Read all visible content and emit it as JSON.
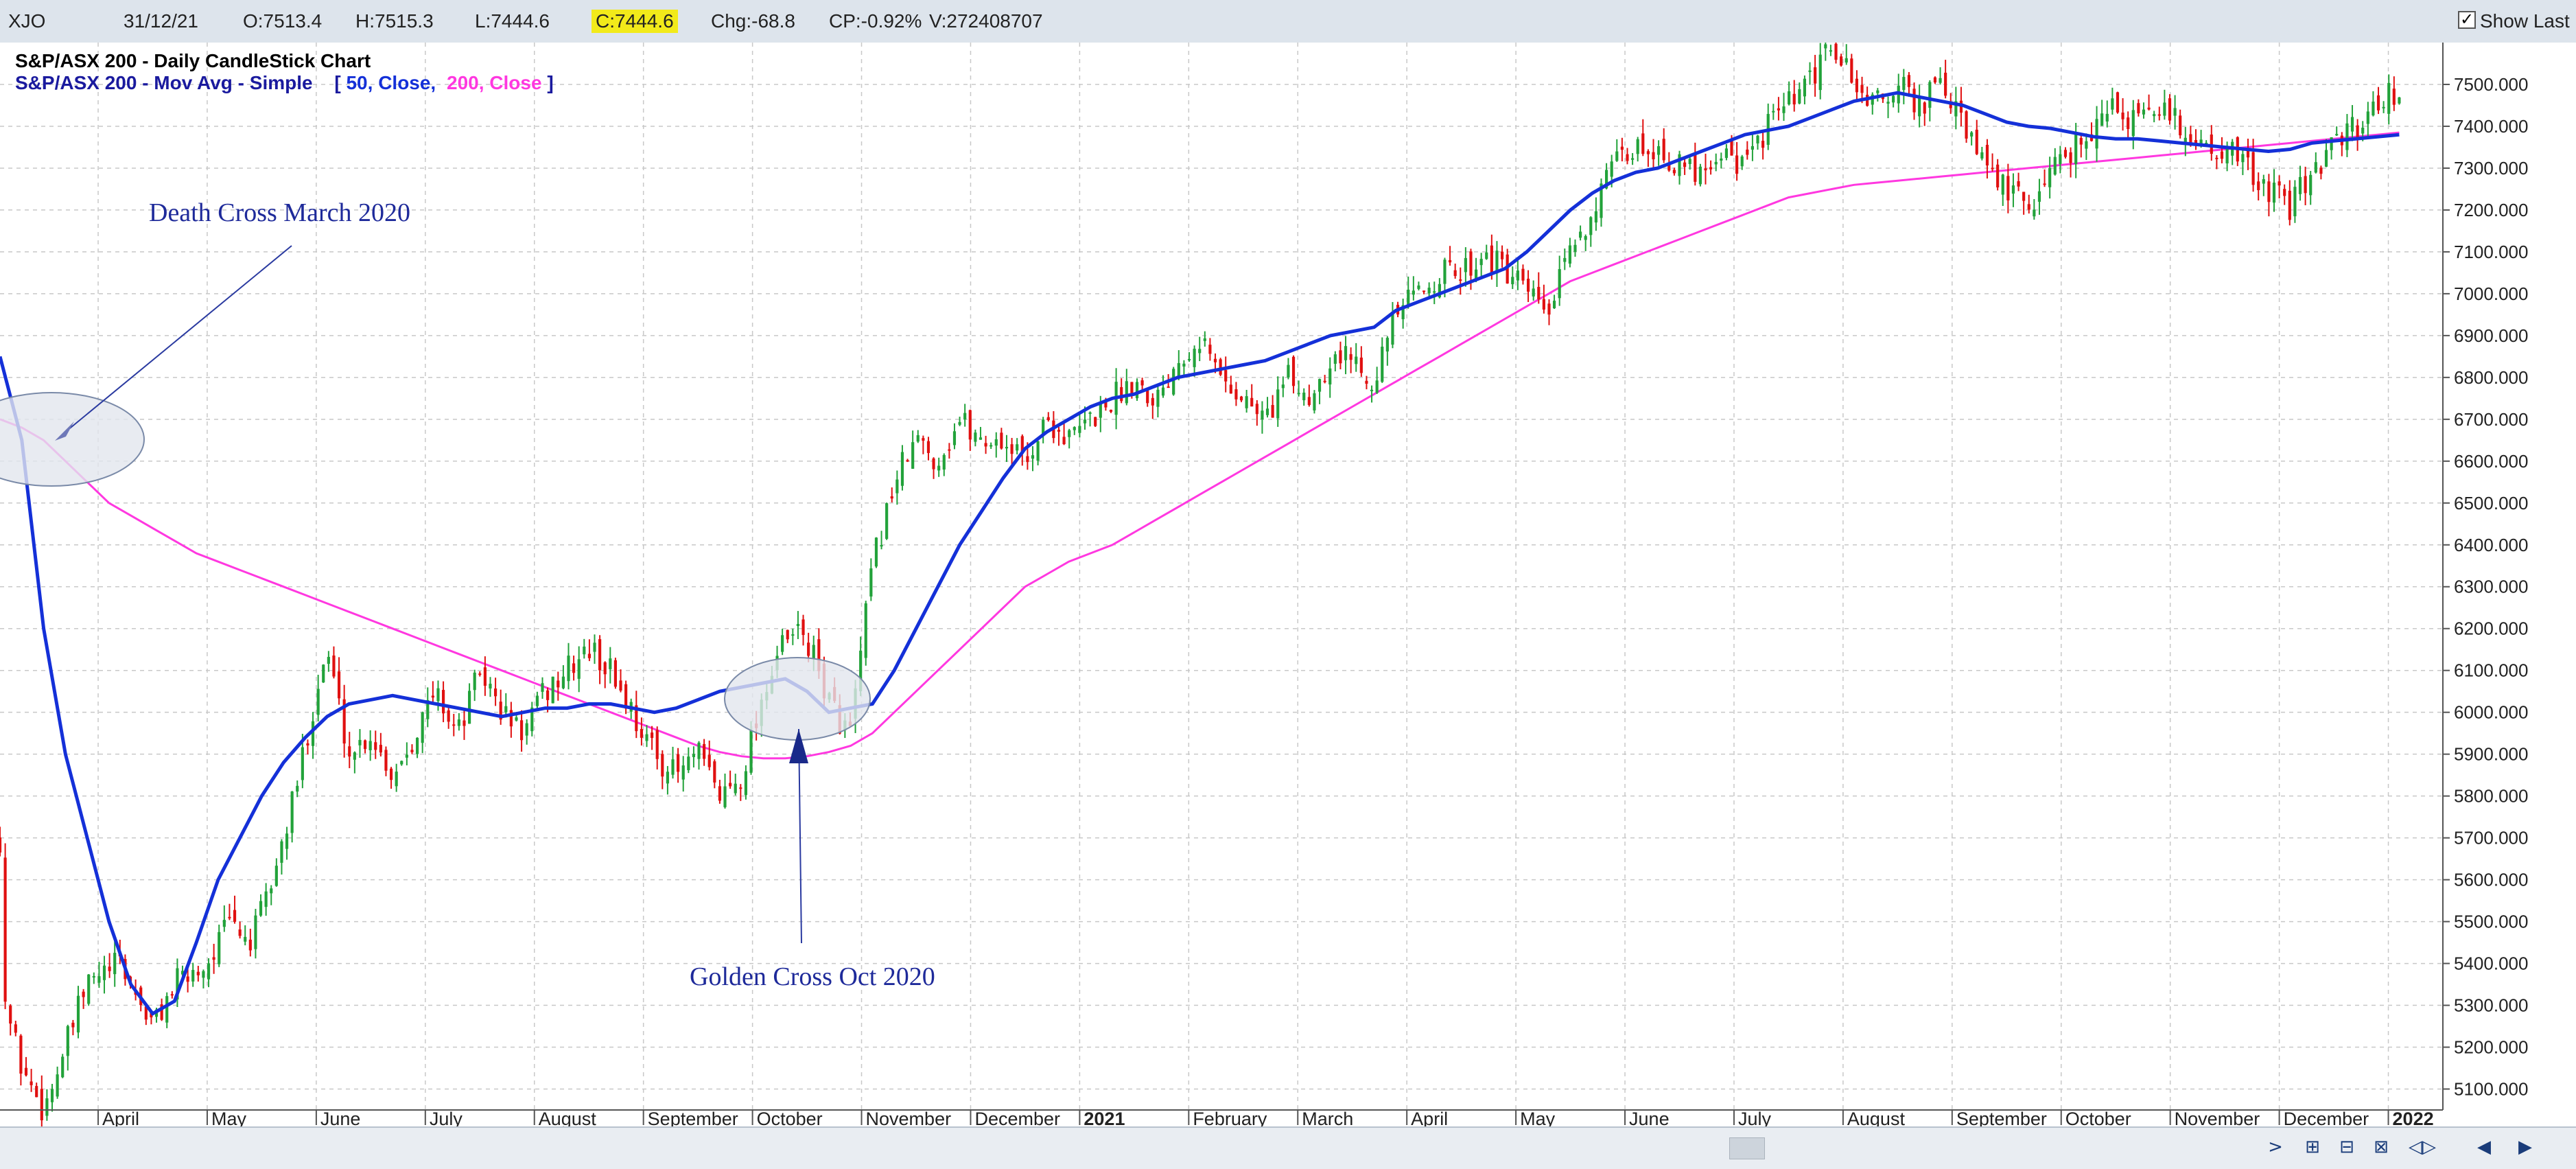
{
  "header": {
    "symbol": "XJO",
    "date": "31/12/21",
    "open": "O:7513.4",
    "high": "H:7515.3",
    "low": "L:7444.6",
    "close": "C:7444.6",
    "change": "Chg:-68.8",
    "change_pct": "CP:-0.92%",
    "volume": "V:272408707",
    "show_last_label": "Show Last",
    "show_last_checked": "✓"
  },
  "chart_data": {
    "type": "candlestick",
    "title": "S&P/ASX 200 - Daily CandleStick Chart",
    "subtitle_prefix": "S&P/ASX 200 - Mov Avg - Simple",
    "ma_params": {
      "open": "[",
      "p1": "50, Close,",
      "p2": "200, Close",
      "close": "]"
    },
    "ylim": [
      5050,
      7600
    ],
    "y_ticks": [
      "5100.000",
      "5200.000",
      "5300.000",
      "5400.000",
      "5500.000",
      "5600.000",
      "5700.000",
      "5800.000",
      "5900.000",
      "6000.000",
      "6100.000",
      "6200.000",
      "6300.000",
      "6400.000",
      "6500.000",
      "6600.000",
      "6700.000",
      "6800.000",
      "6900.000",
      "7000.000",
      "7100.000",
      "7200.000",
      "7300.000",
      "7400.000",
      "7500.000"
    ],
    "x_ticks": [
      {
        "label": "April",
        "x": 3.0
      },
      {
        "label": "May",
        "x": 4.0
      },
      {
        "label": "June",
        "x": 5.0
      },
      {
        "label": "July",
        "x": 6.0
      },
      {
        "label": "August",
        "x": 7.0
      },
      {
        "label": "September",
        "x": 8.0
      },
      {
        "label": "October",
        "x": 9.0
      },
      {
        "label": "November",
        "x": 10.0
      },
      {
        "label": "December",
        "x": 11.0
      },
      {
        "label": "2021",
        "x": 12.0,
        "bold": true
      },
      {
        "label": "February",
        "x": 13.0
      },
      {
        "label": "March",
        "x": 14.0
      },
      {
        "label": "April",
        "x": 15.0
      },
      {
        "label": "May",
        "x": 16.0
      },
      {
        "label": "June",
        "x": 17.0
      },
      {
        "label": "July",
        "x": 18.0
      },
      {
        "label": "August",
        "x": 19.0
      },
      {
        "label": "September",
        "x": 20.0
      },
      {
        "label": "October",
        "x": 21.0
      },
      {
        "label": "November",
        "x": 22.0
      },
      {
        "label": "December",
        "x": 23.0
      },
      {
        "label": "2022",
        "x": 24.0,
        "bold": true
      }
    ],
    "x_range": [
      2.1,
      24.5
    ],
    "close_path": [
      [
        2.1,
        5700
      ],
      [
        2.15,
        5300
      ],
      [
        2.3,
        5150
      ],
      [
        2.5,
        5050
      ],
      [
        2.7,
        5200
      ],
      [
        2.9,
        5350
      ],
      [
        3.2,
        5400
      ],
      [
        3.5,
        5250
      ],
      [
        3.7,
        5350
      ],
      [
        4.0,
        5400
      ],
      [
        4.2,
        5500
      ],
      [
        4.4,
        5450
      ],
      [
        4.6,
        5600
      ],
      [
        4.8,
        5800
      ],
      [
        5.0,
        6050
      ],
      [
        5.1,
        6150
      ],
      [
        5.3,
        5900
      ],
      [
        5.5,
        5950
      ],
      [
        5.7,
        5850
      ],
      [
        5.9,
        5950
      ],
      [
        6.1,
        6050
      ],
      [
        6.3,
        5950
      ],
      [
        6.5,
        6100
      ],
      [
        6.7,
        6000
      ],
      [
        6.9,
        5950
      ],
      [
        7.1,
        6050
      ],
      [
        7.3,
        6100
      ],
      [
        7.5,
        6150
      ],
      [
        7.7,
        6100
      ],
      [
        7.9,
        6000
      ],
      [
        8.1,
        5900
      ],
      [
        8.3,
        5850
      ],
      [
        8.5,
        5900
      ],
      [
        8.7,
        5800
      ],
      [
        8.9,
        5850
      ],
      [
        9.1,
        6050
      ],
      [
        9.25,
        6150
      ],
      [
        9.45,
        6200
      ],
      [
        9.6,
        6100
      ],
      [
        9.75,
        6000
      ],
      [
        9.9,
        5950
      ],
      [
        10.1,
        6350
      ],
      [
        10.3,
        6550
      ],
      [
        10.5,
        6650
      ],
      [
        10.7,
        6600
      ],
      [
        10.9,
        6700
      ],
      [
        11.1,
        6650
      ],
      [
        11.3,
        6650
      ],
      [
        11.5,
        6600
      ],
      [
        11.7,
        6700
      ],
      [
        11.9,
        6650
      ],
      [
        12.1,
        6700
      ],
      [
        12.3,
        6750
      ],
      [
        12.5,
        6800
      ],
      [
        12.7,
        6750
      ],
      [
        12.9,
        6850
      ],
      [
        13.1,
        6900
      ],
      [
        13.3,
        6800
      ],
      [
        13.5,
        6750
      ],
      [
        13.7,
        6700
      ],
      [
        13.9,
        6800
      ],
      [
        14.1,
        6750
      ],
      [
        14.3,
        6850
      ],
      [
        14.5,
        6850
      ],
      [
        14.7,
        6800
      ],
      [
        14.9,
        6950
      ],
      [
        15.1,
        7000
      ],
      [
        15.3,
        7050
      ],
      [
        15.5,
        7050
      ],
      [
        15.7,
        7100
      ],
      [
        15.9,
        7050
      ],
      [
        16.1,
        7000
      ],
      [
        16.3,
        6950
      ],
      [
        16.5,
        7100
      ],
      [
        16.7,
        7200
      ],
      [
        16.9,
        7300
      ],
      [
        17.1,
        7350
      ],
      [
        17.3,
        7350
      ],
      [
        17.5,
        7300
      ],
      [
        17.7,
        7300
      ],
      [
        17.9,
        7350
      ],
      [
        18.1,
        7300
      ],
      [
        18.3,
        7400
      ],
      [
        18.5,
        7450
      ],
      [
        18.7,
        7500
      ],
      [
        18.9,
        7600
      ],
      [
        19.1,
        7500
      ],
      [
        19.3,
        7450
      ],
      [
        19.5,
        7500
      ],
      [
        19.7,
        7450
      ],
      [
        19.9,
        7500
      ],
      [
        20.1,
        7400
      ],
      [
        20.3,
        7300
      ],
      [
        20.5,
        7250
      ],
      [
        20.7,
        7200
      ],
      [
        20.9,
        7300
      ],
      [
        21.1,
        7350
      ],
      [
        21.3,
        7400
      ],
      [
        21.5,
        7450
      ],
      [
        21.7,
        7400
      ],
      [
        21.9,
        7450
      ],
      [
        22.1,
        7400
      ],
      [
        22.3,
        7350
      ],
      [
        22.5,
        7350
      ],
      [
        22.7,
        7300
      ],
      [
        22.9,
        7250
      ],
      [
        23.1,
        7200
      ],
      [
        23.3,
        7300
      ],
      [
        23.5,
        7350
      ],
      [
        23.7,
        7400
      ],
      [
        23.9,
        7450
      ],
      [
        24.0,
        7500
      ],
      [
        24.1,
        7450
      ]
    ],
    "ma50": [
      [
        2.1,
        6850
      ],
      [
        2.3,
        6650
      ],
      [
        2.5,
        6200
      ],
      [
        2.7,
        5900
      ],
      [
        2.9,
        5700
      ],
      [
        3.1,
        5500
      ],
      [
        3.3,
        5350
      ],
      [
        3.5,
        5280
      ],
      [
        3.7,
        5310
      ],
      [
        3.9,
        5450
      ],
      [
        4.1,
        5600
      ],
      [
        4.3,
        5700
      ],
      [
        4.5,
        5800
      ],
      [
        4.7,
        5880
      ],
      [
        4.9,
        5940
      ],
      [
        5.1,
        5990
      ],
      [
        5.3,
        6020
      ],
      [
        5.5,
        6030
      ],
      [
        5.7,
        6040
      ],
      [
        5.9,
        6030
      ],
      [
        6.1,
        6020
      ],
      [
        6.3,
        6010
      ],
      [
        6.5,
        6000
      ],
      [
        6.7,
        5990
      ],
      [
        6.9,
        6000
      ],
      [
        7.1,
        6010
      ],
      [
        7.3,
        6010
      ],
      [
        7.5,
        6020
      ],
      [
        7.7,
        6020
      ],
      [
        7.9,
        6010
      ],
      [
        8.1,
        6000
      ],
      [
        8.3,
        6010
      ],
      [
        8.5,
        6030
      ],
      [
        8.7,
        6050
      ],
      [
        8.9,
        6060
      ],
      [
        9.1,
        6070
      ],
      [
        9.3,
        6080
      ],
      [
        9.5,
        6050
      ],
      [
        9.7,
        6000
      ],
      [
        9.9,
        6010
      ],
      [
        10.1,
        6020
      ],
      [
        10.3,
        6100
      ],
      [
        10.5,
        6200
      ],
      [
        10.7,
        6300
      ],
      [
        10.9,
        6400
      ],
      [
        11.1,
        6480
      ],
      [
        11.3,
        6560
      ],
      [
        11.5,
        6630
      ],
      [
        11.7,
        6670
      ],
      [
        11.9,
        6700
      ],
      [
        12.1,
        6730
      ],
      [
        12.3,
        6750
      ],
      [
        12.5,
        6760
      ],
      [
        12.7,
        6780
      ],
      [
        12.9,
        6800
      ],
      [
        13.1,
        6810
      ],
      [
        13.3,
        6820
      ],
      [
        13.5,
        6830
      ],
      [
        13.7,
        6840
      ],
      [
        13.9,
        6860
      ],
      [
        14.1,
        6880
      ],
      [
        14.3,
        6900
      ],
      [
        14.5,
        6910
      ],
      [
        14.7,
        6920
      ],
      [
        14.9,
        6960
      ],
      [
        15.1,
        6980
      ],
      [
        15.3,
        7000
      ],
      [
        15.5,
        7020
      ],
      [
        15.7,
        7040
      ],
      [
        15.9,
        7060
      ],
      [
        16.1,
        7100
      ],
      [
        16.3,
        7150
      ],
      [
        16.5,
        7200
      ],
      [
        16.7,
        7240
      ],
      [
        16.9,
        7270
      ],
      [
        17.1,
        7290
      ],
      [
        17.3,
        7300
      ],
      [
        17.5,
        7320
      ],
      [
        17.7,
        7340
      ],
      [
        17.9,
        7360
      ],
      [
        18.1,
        7380
      ],
      [
        18.3,
        7390
      ],
      [
        18.5,
        7400
      ],
      [
        18.7,
        7420
      ],
      [
        18.9,
        7440
      ],
      [
        19.1,
        7460
      ],
      [
        19.3,
        7470
      ],
      [
        19.5,
        7480
      ],
      [
        19.7,
        7470
      ],
      [
        19.9,
        7460
      ],
      [
        20.1,
        7450
      ],
      [
        20.3,
        7430
      ],
      [
        20.5,
        7410
      ],
      [
        20.7,
        7400
      ],
      [
        20.9,
        7395
      ],
      [
        21.1,
        7385
      ],
      [
        21.3,
        7375
      ],
      [
        21.5,
        7370
      ],
      [
        21.7,
        7370
      ],
      [
        21.9,
        7365
      ],
      [
        22.1,
        7360
      ],
      [
        22.3,
        7355
      ],
      [
        22.5,
        7350
      ],
      [
        22.7,
        7345
      ],
      [
        22.9,
        7340
      ],
      [
        23.1,
        7345
      ],
      [
        23.3,
        7360
      ],
      [
        23.5,
        7365
      ],
      [
        23.7,
        7370
      ],
      [
        23.9,
        7375
      ],
      [
        24.1,
        7380
      ]
    ],
    "ma200": [
      [
        2.1,
        6700
      ],
      [
        2.3,
        6680
      ],
      [
        2.5,
        6650
      ],
      [
        2.7,
        6600
      ],
      [
        2.9,
        6550
      ],
      [
        3.1,
        6500
      ],
      [
        3.3,
        6470
      ],
      [
        3.5,
        6440
      ],
      [
        3.7,
        6410
      ],
      [
        3.9,
        6380
      ],
      [
        4.1,
        6360
      ],
      [
        4.3,
        6340
      ],
      [
        4.5,
        6320
      ],
      [
        4.7,
        6300
      ],
      [
        4.9,
        6280
      ],
      [
        5.1,
        6260
      ],
      [
        5.3,
        6240
      ],
      [
        5.5,
        6220
      ],
      [
        5.7,
        6200
      ],
      [
        5.9,
        6180
      ],
      [
        6.1,
        6160
      ],
      [
        6.3,
        6140
      ],
      [
        6.5,
        6120
      ],
      [
        6.7,
        6100
      ],
      [
        6.9,
        6080
      ],
      [
        7.1,
        6060
      ],
      [
        7.3,
        6040
      ],
      [
        7.5,
        6020
      ],
      [
        7.7,
        6000
      ],
      [
        7.9,
        5980
      ],
      [
        8.1,
        5960
      ],
      [
        8.3,
        5940
      ],
      [
        8.5,
        5920
      ],
      [
        8.7,
        5905
      ],
      [
        8.9,
        5895
      ],
      [
        9.1,
        5890
      ],
      [
        9.3,
        5890
      ],
      [
        9.5,
        5895
      ],
      [
        9.7,
        5905
      ],
      [
        9.9,
        5920
      ],
      [
        10.1,
        5950
      ],
      [
        10.3,
        6000
      ],
      [
        10.5,
        6050
      ],
      [
        10.7,
        6100
      ],
      [
        10.9,
        6150
      ],
      [
        11.1,
        6200
      ],
      [
        11.3,
        6250
      ],
      [
        11.5,
        6300
      ],
      [
        11.7,
        6330
      ],
      [
        11.9,
        6360
      ],
      [
        12.1,
        6380
      ],
      [
        12.3,
        6400
      ],
      [
        12.5,
        6430
      ],
      [
        12.7,
        6460
      ],
      [
        12.9,
        6490
      ],
      [
        13.1,
        6520
      ],
      [
        13.3,
        6550
      ],
      [
        13.5,
        6580
      ],
      [
        13.7,
        6610
      ],
      [
        13.9,
        6640
      ],
      [
        14.1,
        6670
      ],
      [
        14.3,
        6700
      ],
      [
        14.5,
        6730
      ],
      [
        14.7,
        6760
      ],
      [
        14.9,
        6790
      ],
      [
        15.1,
        6820
      ],
      [
        15.3,
        6850
      ],
      [
        15.5,
        6880
      ],
      [
        15.7,
        6910
      ],
      [
        15.9,
        6940
      ],
      [
        16.1,
        6970
      ],
      [
        16.3,
        7000
      ],
      [
        16.5,
        7030
      ],
      [
        16.7,
        7050
      ],
      [
        16.9,
        7070
      ],
      [
        17.1,
        7090
      ],
      [
        17.3,
        7110
      ],
      [
        17.5,
        7130
      ],
      [
        17.7,
        7150
      ],
      [
        17.9,
        7170
      ],
      [
        18.1,
        7190
      ],
      [
        18.3,
        7210
      ],
      [
        18.5,
        7230
      ],
      [
        18.7,
        7240
      ],
      [
        18.9,
        7250
      ],
      [
        19.1,
        7260
      ],
      [
        19.3,
        7265
      ],
      [
        19.5,
        7270
      ],
      [
        19.7,
        7275
      ],
      [
        19.9,
        7280
      ],
      [
        20.1,
        7285
      ],
      [
        20.3,
        7290
      ],
      [
        20.5,
        7295
      ],
      [
        20.7,
        7300
      ],
      [
        20.9,
        7305
      ],
      [
        21.1,
        7310
      ],
      [
        21.3,
        7315
      ],
      [
        21.5,
        7320
      ],
      [
        21.7,
        7325
      ],
      [
        21.9,
        7330
      ],
      [
        22.1,
        7335
      ],
      [
        22.3,
        7340
      ],
      [
        22.5,
        7345
      ],
      [
        22.7,
        7350
      ],
      [
        22.9,
        7355
      ],
      [
        23.1,
        7360
      ],
      [
        23.3,
        7365
      ],
      [
        23.5,
        7370
      ],
      [
        23.7,
        7375
      ],
      [
        23.9,
        7380
      ],
      [
        24.1,
        7385
      ]
    ],
    "annotations": [
      {
        "text": "Death Cross March 2020",
        "label_x": 2.75,
        "label_y": 7350
      },
      {
        "text": "Golden Cross Oct 2020",
        "label_x": 8.85,
        "label_y": 5440
      }
    ],
    "colors": {
      "up": "#22a23a",
      "down": "#e01010",
      "ma50": "#1430d8",
      "ma200": "#ff38e0",
      "ma_params": "#1a1a9e",
      "annotation": "#1e2a9a",
      "grid": "#c8c8c8"
    }
  },
  "footer": {
    "scroll_right": ">",
    "scroll_left": "<",
    "nav_icons": [
      "⊞",
      "⊟",
      "⊠",
      "◁▷",
      "◀",
      "▶"
    ]
  }
}
